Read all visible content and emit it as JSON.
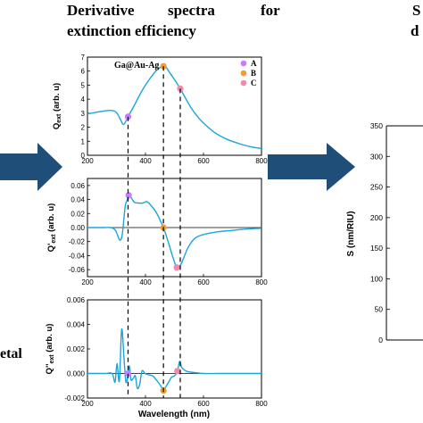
{
  "heading": {
    "line1_words": [
      "Derivative",
      "spectra",
      "for"
    ],
    "line2": "extinction efficiency"
  },
  "left_fragment": "etal",
  "right_fragments": [
    "S",
    "d"
  ],
  "sample_label": "Ga@Au-Ag",
  "colors": {
    "curve": "#1aa6d8",
    "arrow": "#1f4e79",
    "A": "#c77dff",
    "B": "#f39c34",
    "C": "#f08bb0",
    "dash": "#000000"
  },
  "legend": [
    {
      "key": "A",
      "label": "A"
    },
    {
      "key": "B",
      "label": "B"
    },
    {
      "key": "C",
      "label": "C"
    }
  ],
  "chart_data": [
    {
      "type": "line",
      "id": "qext",
      "ylabel": "Q_ext (arb. u)",
      "xlim": [
        200,
        800
      ],
      "ylim": [
        0,
        7
      ],
      "xticks": [
        200,
        400,
        600,
        800
      ],
      "yticks": [
        0,
        1,
        2,
        3,
        4,
        5,
        6,
        7
      ],
      "x": [
        200,
        240,
        280,
        300,
        315,
        325,
        340,
        360,
        380,
        400,
        420,
        440,
        460,
        470,
        480,
        500,
        520,
        540,
        560,
        580,
        600,
        640,
        680,
        720,
        760,
        800
      ],
      "y": [
        2.95,
        3.1,
        3.2,
        3.05,
        2.5,
        2.2,
        2.75,
        3.5,
        4.3,
        5.0,
        5.6,
        6.1,
        6.35,
        6.3,
        6.0,
        5.4,
        4.75,
        4.0,
        3.3,
        2.75,
        2.3,
        1.6,
        1.15,
        0.85,
        0.62,
        0.48
      ],
      "markers": [
        {
          "key": "A",
          "x": 340,
          "y": 2.75
        },
        {
          "key": "B",
          "x": 462,
          "y": 6.35
        },
        {
          "key": "C",
          "x": 520,
          "y": 4.75
        }
      ]
    },
    {
      "type": "line",
      "id": "qext1",
      "ylabel": "Q'_ext (arb. u)",
      "xlim": [
        200,
        800
      ],
      "ylim": [
        -0.07,
        0.07
      ],
      "xticks": [
        200,
        400,
        600,
        800
      ],
      "yticks": [
        -0.06,
        -0.04,
        -0.02,
        0.0,
        0.02,
        0.04,
        0.06
      ],
      "ytick_labels": [
        "-0.06",
        "-0.04",
        "-0.02",
        "0.00",
        "0.02",
        "0.04",
        "0.06"
      ],
      "x": [
        200,
        250,
        280,
        295,
        305,
        312,
        320,
        330,
        336,
        342,
        350,
        362,
        375,
        390,
        405,
        418,
        430,
        442,
        452,
        462,
        472,
        484,
        496,
        508,
        520,
        530,
        545,
        560,
        575,
        600,
        650,
        700,
        750,
        800
      ],
      "y": [
        0.0,
        0.0,
        0.0,
        -0.003,
        -0.012,
        -0.018,
        -0.01,
        0.03,
        0.038,
        0.046,
        0.043,
        0.036,
        0.035,
        0.035,
        0.037,
        0.032,
        0.026,
        0.018,
        0.009,
        0.0,
        -0.012,
        -0.028,
        -0.044,
        -0.057,
        -0.054,
        -0.045,
        -0.03,
        -0.02,
        -0.014,
        -0.01,
        -0.006,
        -0.004,
        -0.002,
        -0.001
      ],
      "markers": [
        {
          "key": "A",
          "x": 342,
          "y": 0.046
        },
        {
          "key": "B",
          "x": 462,
          "y": 0.0
        },
        {
          "key": "C",
          "x": 508,
          "y": -0.057
        }
      ]
    },
    {
      "type": "line",
      "id": "qext2",
      "ylabel": "Q''_ext (arb. u)",
      "xlim": [
        200,
        800
      ],
      "ylim": [
        -0.002,
        0.006
      ],
      "xticks": [
        200,
        400,
        600,
        800
      ],
      "yticks": [
        -0.002,
        0.0,
        0.002,
        0.004,
        0.006
      ],
      "ytick_labels": [
        "-0.002",
        "0.000",
        "0.002",
        "0.004",
        "0.006"
      ],
      "x": [
        200,
        260,
        285,
        295,
        302,
        310,
        318,
        326,
        332,
        336,
        340,
        345,
        350,
        358,
        365,
        372,
        380,
        388,
        398,
        410,
        425,
        440,
        455,
        462,
        470,
        480,
        490,
        500,
        510,
        518,
        525,
        540,
        560,
        600,
        650,
        700,
        800
      ],
      "y": [
        0.0,
        0.0,
        0.0,
        -0.0007,
        0.0008,
        -0.0006,
        0.0036,
        0.0012,
        -0.0006,
        -0.0006,
        0.0,
        0.0006,
        -0.0005,
        -0.0004,
        -0.0002,
        -0.0012,
        -0.0009,
        0.0002,
        0.0,
        -0.0001,
        -0.0002,
        -0.0006,
        -0.0011,
        -0.0014,
        -0.0011,
        -0.0007,
        -0.0003,
        -0.0002,
        0.0002,
        0.001,
        0.0005,
        0.0002,
        0.0001,
        0.0,
        0.0,
        0.0,
        0.0
      ],
      "markers": [
        {
          "key": "A",
          "x": 340,
          "y": 0.0
        },
        {
          "key": "B",
          "x": 462,
          "y": -0.0014
        },
        {
          "key": "C",
          "x": 510,
          "y": 0.0002
        }
      ]
    },
    {
      "type": "line",
      "id": "sensitivity",
      "ylabel": "S (nm/RIU)",
      "ylim": [
        0,
        350
      ],
      "yticks": [
        0,
        50,
        100,
        150,
        200,
        250,
        300,
        350
      ],
      "x": [],
      "y": []
    }
  ],
  "shared_xlabel": "Wavelength (nm)"
}
